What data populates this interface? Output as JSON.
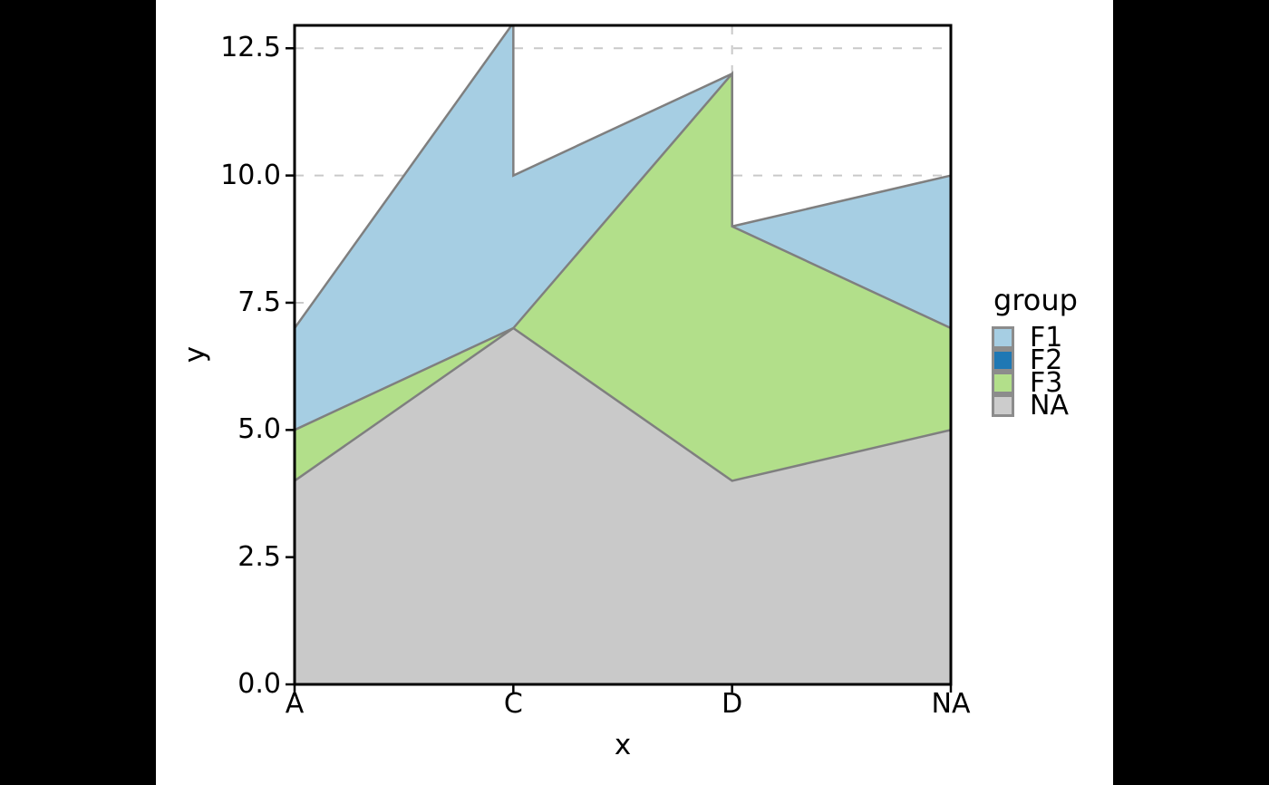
{
  "canvas": {
    "letterbox_color": "#000000",
    "figure_background": "#ffffff"
  },
  "chart_data": {
    "type": "area",
    "title": "",
    "xlabel": "x",
    "ylabel": "y",
    "x_categories": [
      "A",
      "C",
      "D",
      "NA"
    ],
    "y_ticks": [
      {
        "v": 0,
        "label": "0.0"
      },
      {
        "v": 2.5,
        "label": "2.5"
      },
      {
        "v": 5,
        "label": "5.0"
      },
      {
        "v": 7.5,
        "label": "7.5"
      },
      {
        "v": 10,
        "label": "10.0"
      },
      {
        "v": 12.5,
        "label": "12.5"
      }
    ],
    "ylim": [
      0,
      12.95
    ],
    "baseline": 0,
    "grid": {
      "style": "dashed",
      "color": "#C9C9C9",
      "horizontal": true,
      "vertical": true
    },
    "panel_border_color": "#000000",
    "stroke": {
      "color": "#7F7F7F",
      "width": 2.5
    },
    "series": [
      {
        "name": "F1",
        "fill": "#A6CEE3",
        "visible": true,
        "points": [
          [
            "A",
            7
          ],
          [
            "C",
            13
          ],
          [
            "C",
            10
          ],
          [
            "D",
            12
          ],
          [
            "D",
            9
          ],
          [
            "NA",
            10
          ]
        ]
      },
      {
        "name": "F2",
        "fill": "#1F78B4",
        "visible": false,
        "points": []
      },
      {
        "name": "F3",
        "fill": "#B2DF8A",
        "visible": true,
        "points": [
          [
            "A",
            5
          ],
          [
            "C",
            7
          ],
          [
            "D",
            12
          ],
          [
            "D",
            9
          ],
          [
            "NA",
            7
          ]
        ]
      },
      {
        "name": "NA",
        "fill": "#C9C9C9",
        "visible": true,
        "points": [
          [
            "A",
            4
          ],
          [
            "C",
            7
          ],
          [
            "D",
            4
          ],
          [
            "NA",
            5
          ]
        ]
      }
    ],
    "legend": {
      "title": "group",
      "position": "right",
      "key_border_color": "#8C8C8C",
      "entries": [
        {
          "label": "F1",
          "color": "#A6CEE3"
        },
        {
          "label": "F2",
          "color": "#1F78B4"
        },
        {
          "label": "F3",
          "color": "#B2DF8A"
        },
        {
          "label": "NA",
          "color": "#CCCCCC"
        }
      ]
    }
  }
}
